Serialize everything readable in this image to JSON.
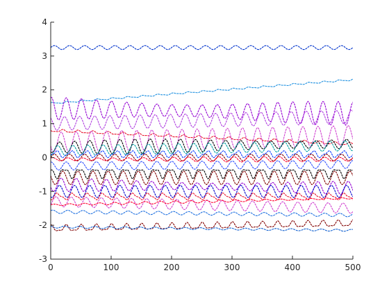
{
  "chart_data": {
    "type": "line",
    "title": "",
    "xlabel": "",
    "ylabel": "",
    "xlim": [
      0,
      500
    ],
    "ylim": [
      -3,
      4
    ],
    "xticks": [
      "0",
      "100",
      "200",
      "300",
      "400",
      "500"
    ],
    "yticks": [
      "-3",
      "-2",
      "-1",
      "0",
      "1",
      "2",
      "3",
      "4"
    ],
    "grid": false,
    "legend": "none",
    "sample_points": 251,
    "series": [
      {
        "color": "#0033cc",
        "base": 3.25,
        "amp": 0.06,
        "period": 25,
        "drift": 0.0,
        "shape": 0
      },
      {
        "color": "#1e90e0",
        "base": 1.6,
        "amp": 0.03,
        "period": 25,
        "drift": 0.7,
        "shape": 1
      },
      {
        "color": "#9400d3",
        "base": 1.45,
        "amp": 0.35,
        "period": 25,
        "drift": -0.15,
        "shape": 2
      },
      {
        "color": "#b040e0",
        "base": 1.0,
        "amp": 0.2,
        "period": 25,
        "drift": 0.2,
        "shape": 0
      },
      {
        "color": "#e8102a",
        "base": 0.8,
        "amp": 0.05,
        "period": 25,
        "drift": -0.4,
        "shape": 1
      },
      {
        "color": "#d040d0",
        "base": 0.45,
        "amp": 0.3,
        "period": 25,
        "drift": 0.2,
        "shape": 0
      },
      {
        "color": "#000000",
        "base": 0.3,
        "amp": 0.22,
        "period": 25,
        "drift": 0.1,
        "shape": 2
      },
      {
        "color": "#00a0a0",
        "base": 0.2,
        "amp": 0.15,
        "period": 25,
        "drift": 0.15,
        "shape": 0
      },
      {
        "color": "#1040ff",
        "base": 0.1,
        "amp": 0.12,
        "period": 25,
        "drift": 0.0,
        "shape": 1
      },
      {
        "color": "#800000",
        "base": 0.0,
        "amp": 0.1,
        "period": 25,
        "drift": 0.0,
        "shape": 0
      },
      {
        "color": "#ff0030",
        "base": -0.05,
        "amp": 0.08,
        "period": 25,
        "drift": 0.0,
        "shape": 2
      },
      {
        "color": "#3050ff",
        "base": -0.25,
        "amp": 0.12,
        "period": 25,
        "drift": 0.05,
        "shape": 0
      },
      {
        "color": "#000000",
        "base": -0.45,
        "amp": 0.18,
        "period": 25,
        "drift": 0.0,
        "shape": 1
      },
      {
        "color": "#800000",
        "base": -0.6,
        "amp": 0.2,
        "period": 25,
        "drift": 0.0,
        "shape": 0
      },
      {
        "color": "#9400d3",
        "base": -0.8,
        "amp": 0.2,
        "period": 25,
        "drift": -0.1,
        "shape": 2
      },
      {
        "color": "#0000cc",
        "base": -1.0,
        "amp": 0.18,
        "period": 25,
        "drift": 0.0,
        "shape": 0
      },
      {
        "color": "#e8102a",
        "base": -1.15,
        "amp": 0.12,
        "period": 25,
        "drift": 0.0,
        "shape": 1
      },
      {
        "color": "#d040d0",
        "base": -1.3,
        "amp": 0.15,
        "period": 25,
        "drift": -0.2,
        "shape": 0
      },
      {
        "color": "#ff0030",
        "base": -1.4,
        "amp": 0.04,
        "period": 25,
        "drift": 0.2,
        "shape": 2
      },
      {
        "color": "#1e70e0",
        "base": -1.6,
        "amp": 0.05,
        "period": 25,
        "drift": -0.1,
        "shape": 0
      },
      {
        "color": "#800000",
        "base": -2.1,
        "amp": 0.12,
        "period": 25,
        "drift": 0.15,
        "shape": 1
      },
      {
        "color": "#1060d0",
        "base": -2.05,
        "amp": 0.03,
        "period": 25,
        "drift": -0.1,
        "shape": 0
      }
    ]
  }
}
